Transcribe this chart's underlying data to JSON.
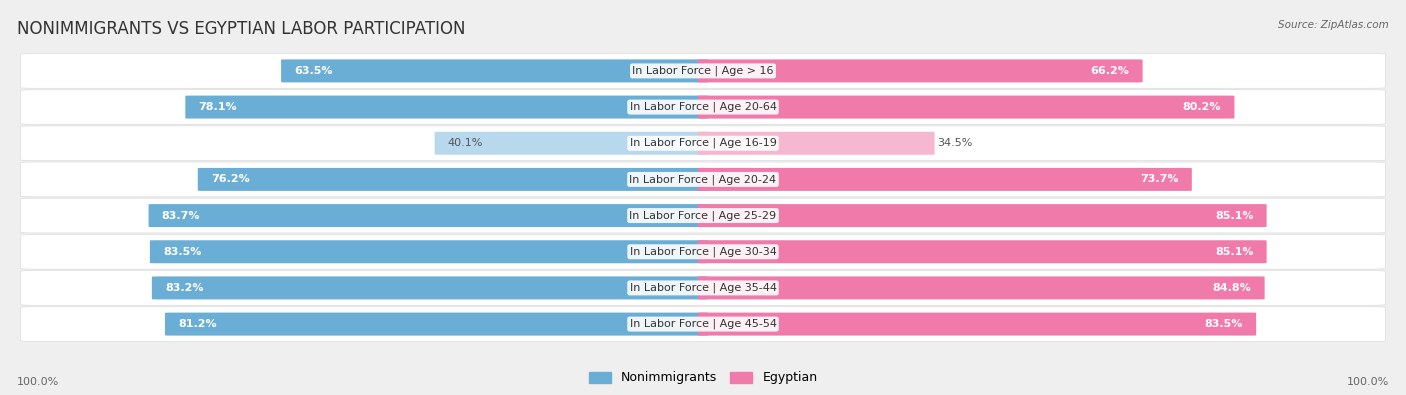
{
  "title": "NONIMMIGRANTS VS EGYPTIAN LABOR PARTICIPATION",
  "source": "Source: ZipAtlas.com",
  "categories": [
    "In Labor Force | Age > 16",
    "In Labor Force | Age 20-64",
    "In Labor Force | Age 16-19",
    "In Labor Force | Age 20-24",
    "In Labor Force | Age 25-29",
    "In Labor Force | Age 30-34",
    "In Labor Force | Age 35-44",
    "In Labor Force | Age 45-54"
  ],
  "nonimmigrant_values": [
    63.5,
    78.1,
    40.1,
    76.2,
    83.7,
    83.5,
    83.2,
    81.2
  ],
  "egyptian_values": [
    66.2,
    80.2,
    34.5,
    73.7,
    85.1,
    85.1,
    84.8,
    83.5
  ],
  "nonimmigrant_color": "#6aaed6",
  "nonimmigrant_color_light": "#b8d8ed",
  "egyptian_color": "#f07aaa",
  "egyptian_color_light": "#f5b8d0",
  "light_threshold": 50,
  "bar_height": 0.62,
  "background_color": "#efefef",
  "row_bg_color": "#ffffff",
  "legend_blue": "#6aaed6",
  "legend_pink": "#f07aaa",
  "title_fontsize": 12,
  "label_fontsize": 8,
  "value_fontsize": 8,
  "bottom_value": "100.0%",
  "scale": 100.0
}
